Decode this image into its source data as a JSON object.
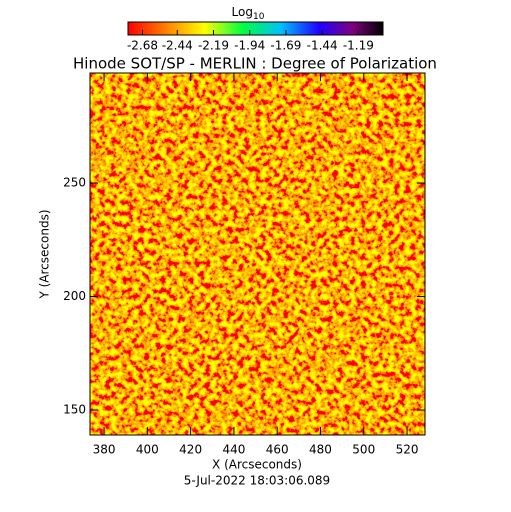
{
  "chart_data": {
    "type": "heatmap",
    "title": "Hinode SOT/SP - MERLIN : Degree of Polarization",
    "colorbar_title": "Log",
    "colorbar_title_sub": "10",
    "colorbar_lim": [
      -2.78,
      -1.02
    ],
    "colorbar_ticks": [
      -2.68,
      -2.44,
      -2.19,
      -1.94,
      -1.69,
      -1.44,
      -1.19
    ],
    "xlabel": "X (Arcseconds)",
    "ylabel": "Y (Arcseconds)",
    "xlim": [
      373.5,
      528.3
    ],
    "xticks": [
      380,
      400,
      420,
      440,
      460,
      480,
      500,
      520
    ],
    "ylim": [
      139,
      298.5
    ],
    "yticks": [
      150,
      200,
      250
    ],
    "footer": "5-Jul-2022 18:03:06.089"
  }
}
